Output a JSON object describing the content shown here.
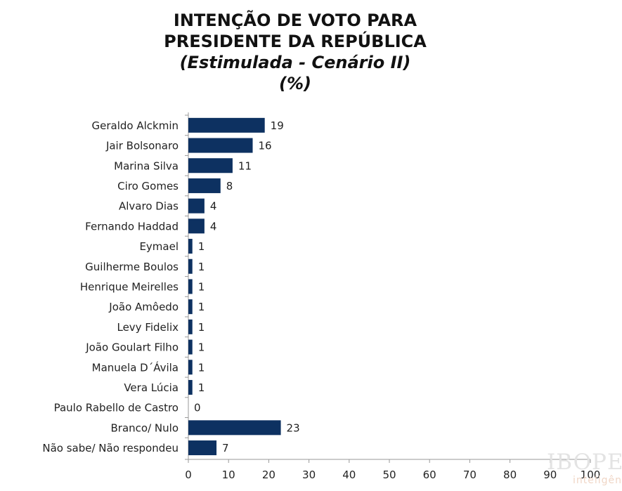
{
  "title": {
    "line1": "INTENÇÃO DE VOTO PARA",
    "line2": "PRESIDENTE DA REPÚBLICA",
    "line3": "(Estimulada - Cenário II)",
    "line4": "(%)"
  },
  "logo": {
    "main": "IBOPE",
    "sub": "inteligên"
  },
  "chart_data": {
    "type": "bar",
    "orientation": "horizontal",
    "categories": [
      "Geraldo Alckmin",
      "Jair Bolsonaro",
      "Marina Silva",
      "Ciro Gomes",
      "Alvaro Dias",
      "Fernando Haddad",
      "Eymael",
      "Guilherme Boulos",
      "Henrique Meirelles",
      "João Amôedo",
      "Levy Fidelix",
      "João Goulart Filho",
      "Manuela D´Ávila",
      "Vera Lúcia",
      "Paulo Rabello de Castro",
      "Branco/ Nulo",
      "Não sabe/ Não respondeu"
    ],
    "values": [
      19,
      16,
      11,
      8,
      4,
      4,
      1,
      1,
      1,
      1,
      1,
      1,
      1,
      1,
      0,
      23,
      7
    ],
    "xlim": [
      0,
      100
    ],
    "xticks": [
      0,
      10,
      20,
      30,
      40,
      50,
      60,
      70,
      80,
      90,
      100
    ],
    "bar_color": "#0d3161",
    "data_labels": true,
    "grid": false,
    "legend": "none"
  }
}
